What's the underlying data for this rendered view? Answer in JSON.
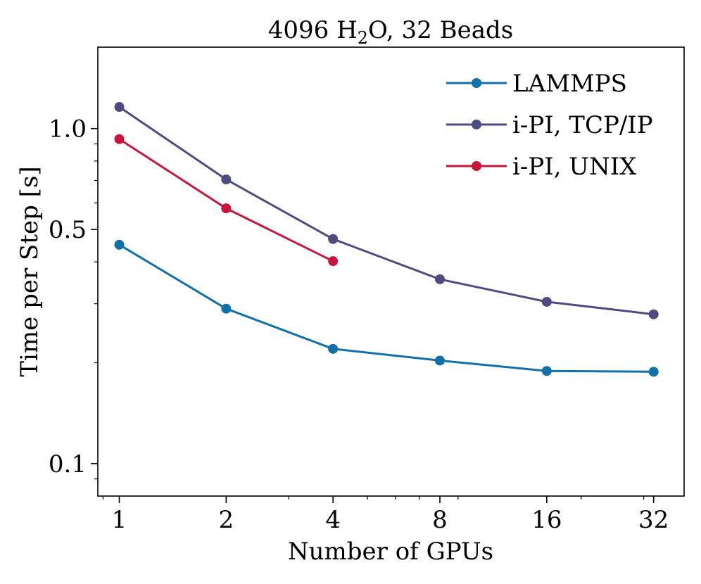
{
  "chart_data": {
    "type": "line",
    "title": "4096 H2O, 32 Beads",
    "title_parts": {
      "pre": "4096 H",
      "sub": "2",
      "post": "O, 32 Beads"
    },
    "xlabel": "Number of GPUs",
    "ylabel": "Time per Step [s]",
    "xscale": "log2",
    "yscale": "log10",
    "xlim": [
      0.87,
      39
    ],
    "ylim": [
      0.08,
      1.75
    ],
    "xticks": [
      1,
      2,
      4,
      8,
      16,
      32
    ],
    "xtick_labels": [
      "1",
      "2",
      "4",
      "8",
      "16",
      "32"
    ],
    "yticks": [
      0.1,
      0.5,
      1.0
    ],
    "ytick_labels": [
      "0.1",
      "0.5",
      "1.0"
    ],
    "legend_position": "top-right",
    "grid": false,
    "series": [
      {
        "name": "LAMMPS",
        "color": "#1170aa",
        "x": [
          1,
          2,
          4,
          8,
          16,
          32
        ],
        "values": [
          0.45,
          0.29,
          0.22,
          0.203,
          0.189,
          0.188
        ]
      },
      {
        "name": "i-PI, TCP/IP",
        "color": "#4e4b80",
        "x": [
          1,
          2,
          4,
          8,
          16,
          32
        ],
        "values": [
          1.16,
          0.705,
          0.468,
          0.355,
          0.304,
          0.279
        ]
      },
      {
        "name": "i-PI, UNIX",
        "color": "#c8163b",
        "x": [
          1,
          2,
          4
        ],
        "values": [
          0.93,
          0.578,
          0.402
        ]
      }
    ]
  }
}
